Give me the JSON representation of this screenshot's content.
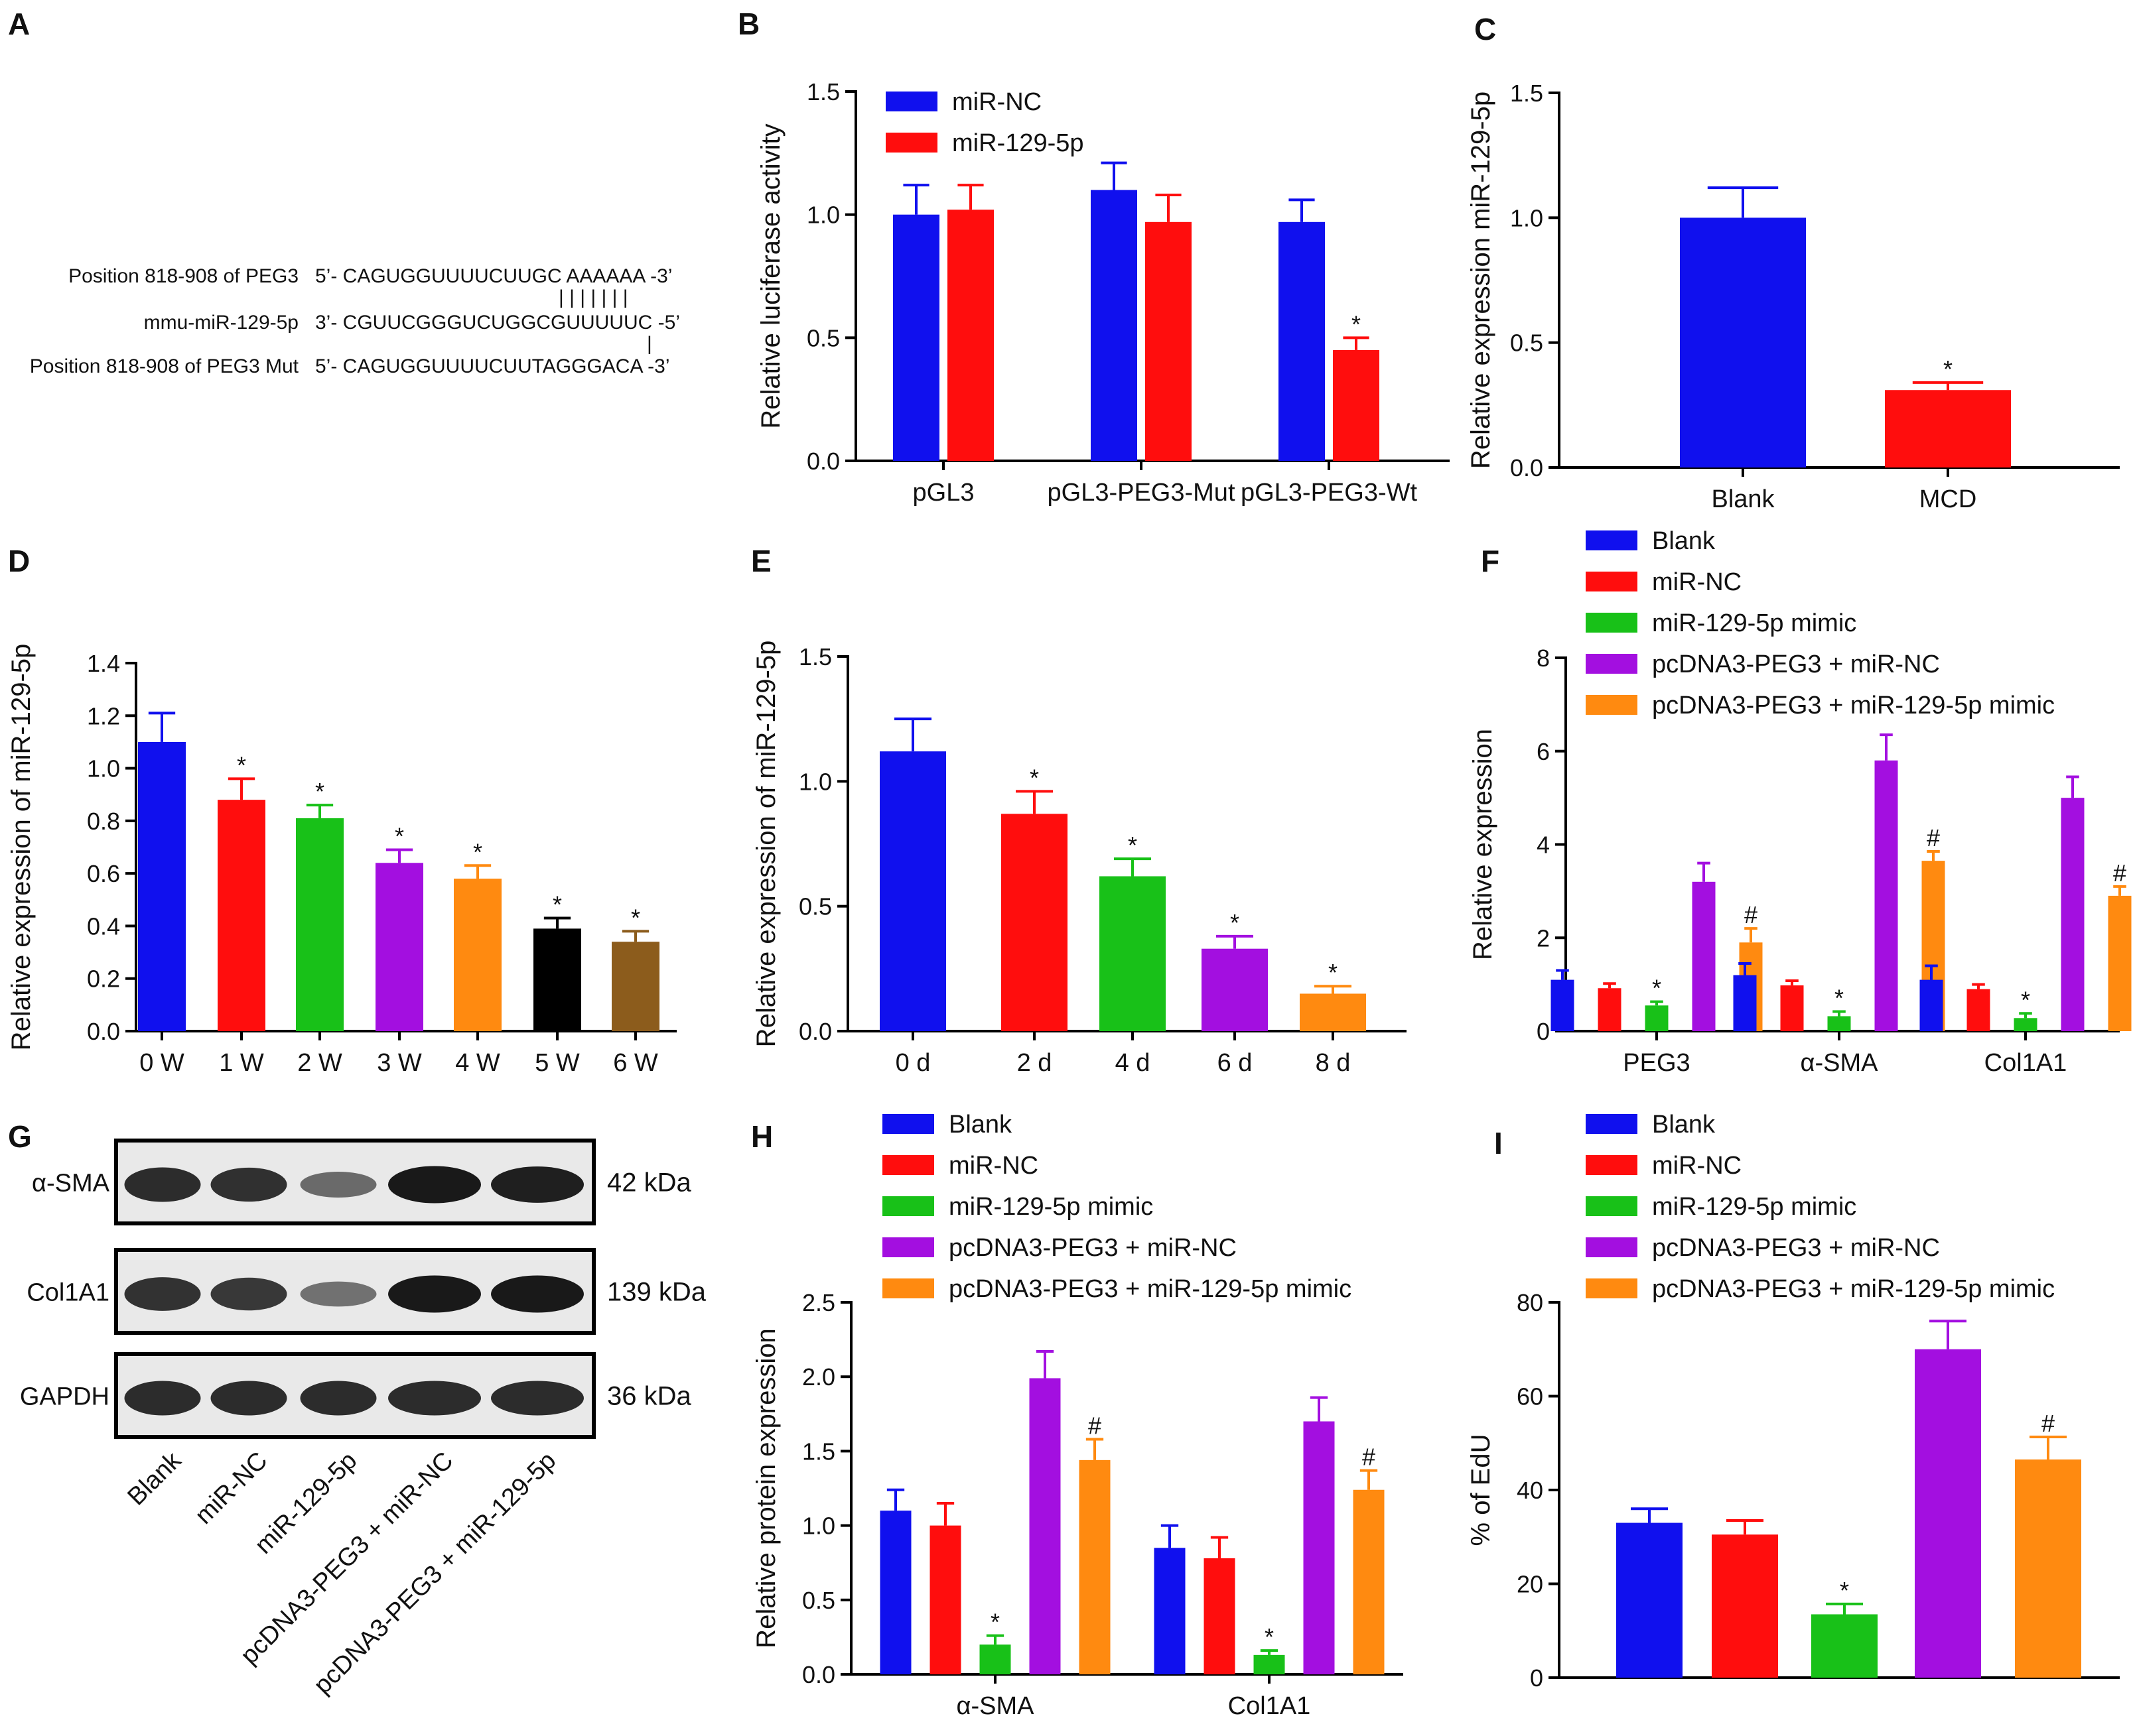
{
  "colors": {
    "blue": "#1010ee",
    "red": "#ff0d0d",
    "green": "#18c118",
    "purple": "#a30fe0",
    "orange": "#ff8a10",
    "black": "#000000",
    "brown": "#8c5c1c"
  },
  "panel_a": {
    "label": "A",
    "rows": [
      {
        "name": "Position 818-908 of PEG3",
        "seq": "5’- CAGUGGUUUUCUUGC AAAAAA -3’"
      },
      {
        "name": "mmu-miR-129-5p",
        "seq": "3’- CGUUCGGGUCUGGCGUUUUUC -5’"
      },
      {
        "name": "Position 818-908 of PEG3 Mut",
        "seq": "5’- CAGUGGUUUUCUUTAGGGACA -3’"
      }
    ],
    "pairing_top": "| | | | | | |",
    "pairing_bottom": "|"
  },
  "chart_data": [
    {
      "panel": "B",
      "type": "bar",
      "title": "",
      "xlabel": "",
      "ylabel": "Relative luciferase activity",
      "ylim": [
        0,
        1.5
      ],
      "yticks": [
        "0.0",
        "0.5",
        "1.0",
        "1.5"
      ],
      "categories": [
        "pGL3",
        "pGL3-PEG3-Mut",
        "pGL3-PEG3-Wt"
      ],
      "legend_position": "top-left",
      "series": [
        {
          "name": "miR-NC",
          "color_key": "blue",
          "values": [
            1.0,
            1.1,
            0.97
          ],
          "errors": [
            0.12,
            0.11,
            0.09
          ],
          "annotations": [
            "",
            "",
            ""
          ]
        },
        {
          "name": "miR-129-5p",
          "color_key": "red",
          "values": [
            1.02,
            0.97,
            0.45
          ],
          "errors": [
            0.1,
            0.11,
            0.05
          ],
          "annotations": [
            "",
            "",
            "*"
          ]
        }
      ]
    },
    {
      "panel": "C",
      "type": "bar",
      "title": "",
      "xlabel": "",
      "ylabel": "Relative expression miR-129-5p",
      "ylim": [
        0,
        1.5
      ],
      "yticks": [
        "0.0",
        "0.5",
        "1.0",
        "1.5"
      ],
      "categories": [
        "Blank",
        "MCD"
      ],
      "values": [
        1.0,
        0.31
      ],
      "errors": [
        0.12,
        0.03
      ],
      "color_keys": [
        "blue",
        "red"
      ],
      "annotations": [
        "",
        "*"
      ]
    },
    {
      "panel": "D",
      "type": "bar",
      "title": "",
      "xlabel": "",
      "ylabel": "Relative expression of miR-129-5p",
      "ylim": [
        0,
        1.4
      ],
      "yticks": [
        "0.0",
        "0.2",
        "0.4",
        "0.6",
        "0.8",
        "1.0",
        "1.2",
        "1.4"
      ],
      "categories": [
        "0 W",
        "1 W",
        "2 W",
        "3 W",
        "4 W",
        "5 W",
        "6 W"
      ],
      "values": [
        1.1,
        0.88,
        0.81,
        0.64,
        0.58,
        0.39,
        0.34
      ],
      "errors": [
        0.11,
        0.08,
        0.05,
        0.05,
        0.05,
        0.04,
        0.04
      ],
      "color_keys": [
        "blue",
        "red",
        "green",
        "purple",
        "orange",
        "black",
        "brown"
      ],
      "annotations": [
        "",
        "*",
        "*",
        "*",
        "*",
        "*",
        "*"
      ]
    },
    {
      "panel": "E",
      "type": "bar",
      "title": "",
      "xlabel": "",
      "ylabel": "Relative expression of miR-129-5p",
      "ylim": [
        0,
        1.5
      ],
      "yticks": [
        "0.0",
        "0.5",
        "1.0",
        "1.5"
      ],
      "categories": [
        "0 d",
        "2 d",
        "4 d",
        "6 d",
        "8 d"
      ],
      "values": [
        1.12,
        0.87,
        0.62,
        0.33,
        0.15
      ],
      "errors": [
        0.13,
        0.09,
        0.07,
        0.05,
        0.03
      ],
      "color_keys": [
        "blue",
        "red",
        "green",
        "purple",
        "orange"
      ],
      "annotations": [
        "",
        "*",
        "*",
        "*",
        "*"
      ]
    },
    {
      "panel": "F",
      "type": "bar",
      "title": "",
      "xlabel": "",
      "ylabel": "Relative expression",
      "ylim": [
        0,
        8
      ],
      "yticks": [
        "0",
        "2",
        "4",
        "6",
        "8"
      ],
      "categories": [
        "PEG3",
        "α-SMA",
        "Col1A1"
      ],
      "legend_position": "top",
      "series": [
        {
          "name": "Blank",
          "color_key": "blue",
          "values": [
            1.1,
            1.2,
            1.1
          ],
          "errors": [
            0.2,
            0.25,
            0.3
          ],
          "annotations": [
            "",
            "",
            ""
          ]
        },
        {
          "name": "miR-NC",
          "color_key": "red",
          "values": [
            0.92,
            0.98,
            0.9
          ],
          "errors": [
            0.1,
            0.1,
            0.1
          ],
          "annotations": [
            "",
            "",
            ""
          ]
        },
        {
          "name": "miR-129-5p mimic",
          "color_key": "green",
          "values": [
            0.55,
            0.32,
            0.28
          ],
          "errors": [
            0.08,
            0.1,
            0.1
          ],
          "annotations": [
            "*",
            "*",
            "*"
          ]
        },
        {
          "name": "pcDNA3-PEG3 + miR-NC",
          "color_key": "purple",
          "values": [
            3.2,
            5.8,
            5.0
          ],
          "errors": [
            0.4,
            0.55,
            0.45
          ],
          "annotations": [
            "",
            "",
            ""
          ]
        },
        {
          "name": "pcDNA3-PEG3 + miR-129-5p mimic",
          "color_key": "orange",
          "values": [
            1.9,
            3.65,
            2.9
          ],
          "errors": [
            0.3,
            0.2,
            0.2
          ],
          "annotations": [
            "#",
            "#",
            "#"
          ]
        }
      ]
    },
    {
      "panel": "H",
      "type": "bar",
      "title": "",
      "xlabel": "",
      "ylabel": "Relative protein expression",
      "ylim": [
        0,
        2.5
      ],
      "yticks": [
        "0.0",
        "0.5",
        "1.0",
        "1.5",
        "2.0",
        "2.5"
      ],
      "categories": [
        "α-SMA",
        "Col1A1"
      ],
      "legend_position": "top",
      "series": [
        {
          "name": "Blank",
          "color_key": "blue",
          "values": [
            1.1,
            0.85
          ],
          "errors": [
            0.14,
            0.15
          ],
          "annotations": [
            "",
            ""
          ]
        },
        {
          "name": "miR-NC",
          "color_key": "red",
          "values": [
            1.0,
            0.78
          ],
          "errors": [
            0.15,
            0.14
          ],
          "annotations": [
            "",
            ""
          ]
        },
        {
          "name": "miR-129-5p mimic",
          "color_key": "green",
          "values": [
            0.2,
            0.13
          ],
          "errors": [
            0.06,
            0.03
          ],
          "annotations": [
            "*",
            "*"
          ]
        },
        {
          "name": "pcDNA3-PEG3 + miR-NC",
          "color_key": "purple",
          "values": [
            1.99,
            1.7
          ],
          "errors": [
            0.18,
            0.16
          ],
          "annotations": [
            "",
            ""
          ]
        },
        {
          "name": "pcDNA3-PEG3 + miR-129-5p mimic",
          "color_key": "orange",
          "values": [
            1.44,
            1.24
          ],
          "errors": [
            0.14,
            0.13
          ],
          "annotations": [
            "#",
            "#"
          ]
        }
      ]
    },
    {
      "panel": "I",
      "type": "bar",
      "title": "",
      "xlabel": "",
      "ylabel": "% of EdU",
      "ylim": [
        0,
        80
      ],
      "yticks": [
        "0",
        "20",
        "40",
        "60",
        "80"
      ],
      "categories": [
        "Blank",
        "miR-NC",
        "miR-129-5p mimic",
        "pcDNA3-PEG3 + miR-NC",
        "pcDNA3-PEG3 + miR-129-5p mimic"
      ],
      "show_category_labels": false,
      "values": [
        33,
        30.5,
        13.5,
        70,
        46.5
      ],
      "errors": [
        3,
        3,
        2.2,
        6,
        4.8
      ],
      "color_keys": [
        "blue",
        "red",
        "green",
        "purple",
        "orange"
      ],
      "annotations": [
        "",
        "",
        "*",
        "",
        "#"
      ]
    }
  ],
  "panel_g": {
    "label": "G",
    "blots": [
      {
        "name": "α-SMA",
        "kda": "42 kDa",
        "intensities": [
          0.85,
          0.82,
          0.35,
          1.0,
          0.95
        ]
      },
      {
        "name": "Col1A1",
        "kda": "139 kDa",
        "intensities": [
          0.8,
          0.75,
          0.3,
          1.0,
          1.0
        ]
      },
      {
        "name": "GAPDH",
        "kda": "36 kDa",
        "intensities": [
          0.85,
          0.85,
          0.85,
          0.85,
          0.85
        ]
      }
    ],
    "lanes": [
      "Blank",
      "miR-NC",
      "miR-129-5p",
      "pcDNA3-PEG3 + miR-NC",
      "pcDNA3-PEG3 + miR-129-5p"
    ]
  },
  "panel_labels": {
    "B": "B",
    "C": "C",
    "D": "D",
    "E": "E",
    "F": "F",
    "H": "H",
    "I": "I"
  }
}
